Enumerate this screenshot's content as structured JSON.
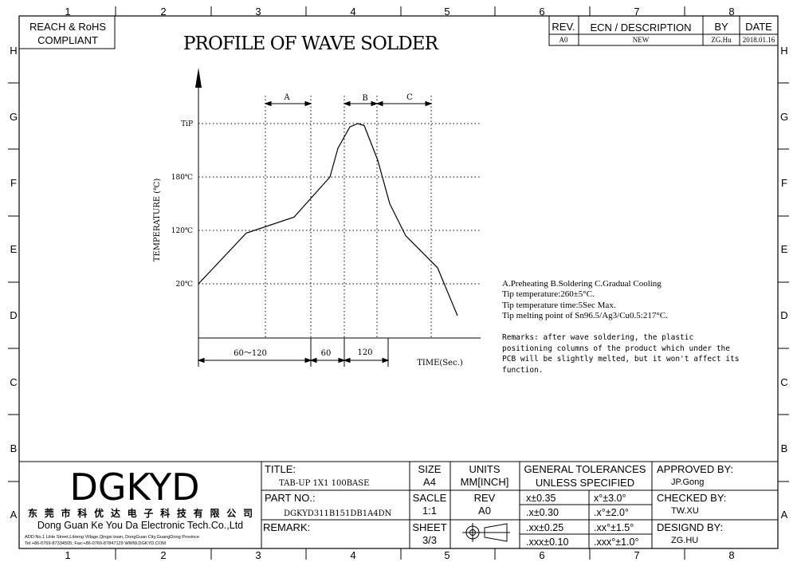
{
  "frame": {
    "col_labels": [
      "1",
      "2",
      "3",
      "4",
      "5",
      "6",
      "7",
      "8"
    ],
    "row_labels": [
      "H",
      "G",
      "F",
      "E",
      "D",
      "C",
      "B",
      "A"
    ]
  },
  "compliance": {
    "line1": "REACH & RoHS",
    "line2": "COMPLIANT"
  },
  "title": "PROFILE OF WAVE SOLDER",
  "revision": {
    "headers": {
      "rev": "REV.",
      "ecn": "ECN / DESCRIPTION",
      "by": "BY",
      "date": "DATE"
    },
    "rows": [
      {
        "rev": "A0",
        "ecn": "NEW",
        "by": "ZG.Hu",
        "date": "2018.01.16"
      }
    ]
  },
  "chart_data": {
    "type": "line",
    "title": "",
    "xlabel": "TIME(Sec.)",
    "ylabel": "TEMPERATURE (℃)",
    "y_ticks": [
      {
        "label": "20℃",
        "value": 20
      },
      {
        "label": "120℃",
        "value": 120
      },
      {
        "label": "180℃",
        "value": 180
      },
      {
        "label": "TiP",
        "value": 260
      }
    ],
    "zones": [
      {
        "label": "A"
      },
      {
        "label": "B"
      },
      {
        "label": "C"
      }
    ],
    "durations": [
      "60～120",
      "60",
      "120"
    ],
    "series": [
      {
        "values": [
          [
            0,
            20
          ],
          [
            60,
            115
          ],
          [
            120,
            135
          ],
          [
            165,
            180
          ],
          [
            175,
            223
          ],
          [
            190,
            255
          ],
          [
            200,
            260
          ],
          [
            208,
            257
          ],
          [
            225,
            205
          ],
          [
            240,
            150
          ],
          [
            260,
            110
          ],
          [
            300,
            50
          ],
          [
            325,
            5
          ]
        ]
      }
    ]
  },
  "notes": {
    "line1": "A.Preheating  B.Soldering  C.Gradual Cooling",
    "line2": "Tip temperature:260±5°C.",
    "line3": "Tip temperature time:5Sec Max.",
    "line4": "Tip melting point of Sn96.5/Ag3/Cu0.5:217°C.",
    "remarks": [
      "Remarks: after wave soldering, the plastic",
      "positioning columns of the product  which under the",
      "PCB will be slightly melted, but it won't affect its",
      "function."
    ]
  },
  "title_block": {
    "logo": "DGKYD",
    "company_cn": "东 莞 市 科 优 达 电 子 科 技 有 限 公 司",
    "company_en": "Dong Guan Ke You Da Electronic Tech.Co.,Ltd",
    "address": "ADD:No.1 LiHe Street,LiHeng Village,Qingxi town, DongGuan City,GuangDong Province",
    "tel": "Tel:+86-0769-87334505; Fax:+86-0769-87847129  WWW.DGKYD.COM",
    "title_label": "TITLE:",
    "title_value": "TAB-UP 1X1 100BASE",
    "part_label": "PART NO.:",
    "part_value": "DGKYD311B151DB1A4DN",
    "remark_label": "REMARK:",
    "size_label": "SIZE",
    "size_value": "A4",
    "units_label": "UNITS",
    "units_value": "MM[INCH]",
    "scale_label": "SACLE",
    "scale_value": "1:1",
    "rev_label": "REV",
    "rev_value": "A0",
    "sheet_label": "SHEET",
    "sheet_value": "3/3",
    "tol_line1": "GENERAL TOLERANCES",
    "tol_line2": "UNLESS SPECIFIED",
    "tolerances": [
      [
        "x±0.35",
        "x°±3.0°"
      ],
      [
        ".x±0.30",
        ".x°±2.0°"
      ],
      [
        ".xx±0.25",
        ".xx°±1.5°"
      ],
      [
        ".xxx±0.10",
        ".xxx°±1.0°"
      ]
    ],
    "approved_label": "APPROVED BY:",
    "approved_value": "JP.Gong",
    "checked_label": "CHECKED BY:",
    "checked_value": "TW.XU",
    "designed_label": "DESIGND BY:",
    "designed_value": "ZG.HU"
  }
}
